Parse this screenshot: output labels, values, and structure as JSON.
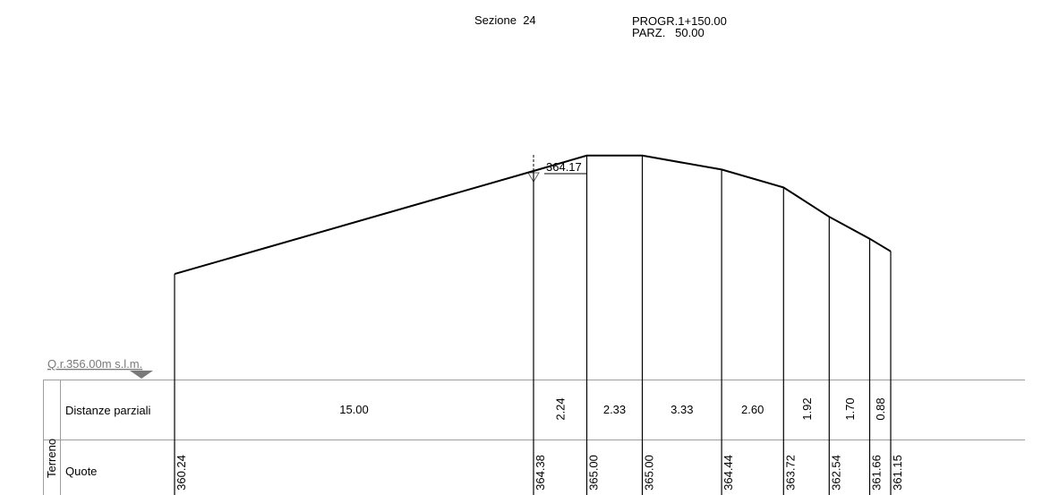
{
  "header": {
    "section": "Sezione  24",
    "progr": "PROGR.1+150.00",
    "parz": "PARZ.   50.00"
  },
  "reference": {
    "label": "Q.r.356.00m s.l.m.",
    "elevation": 356.0
  },
  "axis_marker": {
    "label": "364.17",
    "elevation": 364.17
  },
  "table": {
    "group_label": "Terreno",
    "row_distances_label": "Distanze parziali",
    "row_elevations_label": "Quote"
  },
  "profile": {
    "distances": [
      "15.00",
      "2.24",
      "2.33",
      "3.33",
      "2.60",
      "1.92",
      "1.70",
      "0.88"
    ],
    "elevations": [
      "360.24",
      "364.38",
      "365.00",
      "365.00",
      "364.44",
      "363.72",
      "362.54",
      "361.66",
      "361.15"
    ]
  },
  "colors": {
    "line": "#000000",
    "table_border": "#9e9e9e",
    "reference_text": "#7a7a7a"
  }
}
